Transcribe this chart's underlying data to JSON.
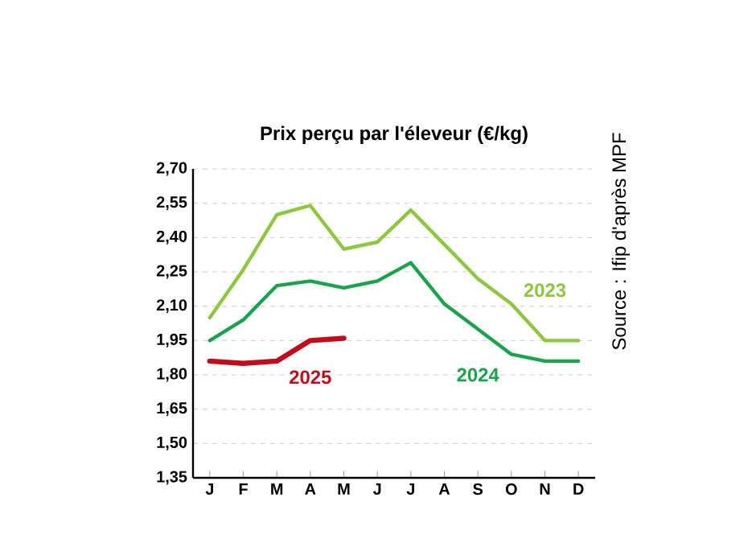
{
  "chart_data": {
    "type": "line",
    "title": "Prix perçu par l'éleveur (€/kg)",
    "categories": [
      "J",
      "F",
      "M",
      "A",
      "M",
      "J",
      "J",
      "A",
      "S",
      "O",
      "N",
      "D"
    ],
    "series": [
      {
        "name": "2023",
        "color": "#8dc63f",
        "values": [
          2.05,
          2.26,
          2.5,
          2.54,
          2.35,
          2.38,
          2.52,
          2.37,
          2.22,
          2.11,
          1.95,
          1.95
        ]
      },
      {
        "name": "2024",
        "color": "#1aa34a",
        "values": [
          1.95,
          2.04,
          2.19,
          2.21,
          2.18,
          2.21,
          2.29,
          2.11,
          2.0,
          1.89,
          1.86,
          1.86
        ]
      },
      {
        "name": "2025",
        "color": "#c00d1e",
        "values": [
          1.86,
          1.85,
          1.86,
          1.95,
          1.96,
          null,
          null,
          null,
          null,
          null,
          null,
          null
        ]
      }
    ],
    "ylim": [
      1.35,
      2.7
    ],
    "yticks": [
      {
        "value": 1.35,
        "label": "1,35"
      },
      {
        "value": 1.5,
        "label": "1,50"
      },
      {
        "value": 1.65,
        "label": "1,65"
      },
      {
        "value": 1.8,
        "label": "1,80"
      },
      {
        "value": 1.95,
        "label": "1,95"
      },
      {
        "value": 2.1,
        "label": "2,10"
      },
      {
        "value": 2.25,
        "label": "2,25"
      },
      {
        "value": 2.4,
        "label": "2,40"
      },
      {
        "value": 2.55,
        "label": "2,55"
      },
      {
        "value": 2.7,
        "label": "2,70"
      }
    ],
    "grid": "y",
    "legend": false,
    "marker": "none",
    "line_style": "solid",
    "annotations": [
      "Source : Ifip d'après MPF"
    ]
  }
}
